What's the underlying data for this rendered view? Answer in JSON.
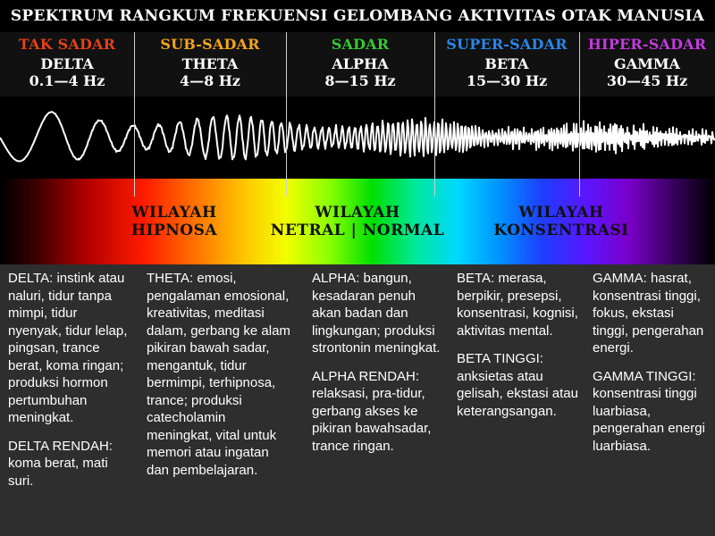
{
  "title": "SPEKTRUM RANGKUM FREKUENSI GELOMBANG AKTIVITAS OTAK MANUSIA",
  "bands": [
    {
      "state": "TAK SADAR",
      "name": "DELTA",
      "freq": "0.1—4 Hz",
      "color": "#e2411a"
    },
    {
      "state": "SUB-SADAR",
      "name": "THETA",
      "freq": "4—8 Hz",
      "color": "#f2a51e"
    },
    {
      "state": "SADAR",
      "name": "ALPHA",
      "freq": "8—15 Hz",
      "color": "#35c935"
    },
    {
      "state": "SUPER-SADAR",
      "name": "BETA",
      "freq": "15—30 Hz",
      "color": "#2a86e8"
    },
    {
      "state": "HIPER-SADAR",
      "name": "GAMMA",
      "freq": "30—45 Hz",
      "color": "#c43adf"
    }
  ],
  "regions": [
    {
      "line1": "WILAYAH",
      "line2": "HIPNOSA"
    },
    {
      "line1": "WILAYAH",
      "line2": "NETRAL | NORMAL"
    },
    {
      "line1": "WILAYAH",
      "line2": "KONSENTRASI"
    }
  ],
  "descriptions": [
    {
      "main": "DELTA: instink atau naluri, tidur tanpa mimpi, tidur nyenyak, tidur lelap, pingsan, trance berat, koma ringan; produksi hormon pertumbuhan meningkat.",
      "sub": "DELTA RENDAH: koma berat, mati suri."
    },
    {
      "main": "THETA: emosi, pengalaman emosional, kreativitas, meditasi dalam, gerbang ke alam pikiran bawah sadar, mengantuk, tidur bermimpi, terhipnosa, trance; produksi catecholamin meningkat, vital untuk memori atau ingatan dan pembelajaran.",
      "sub": ""
    },
    {
      "main": "ALPHA: bangun, kesadaran penuh akan badan dan lingkungan; produksi strontonin meningkat.",
      "sub": "ALPHA RENDAH: relaksasi, pra-tidur, gerbang akses ke pikiran bawahsadar, trance ringan."
    },
    {
      "main": "BETA: merasa, berpikir, presepsi, konsentrasi, kognisi, aktivitas mental.",
      "sub": "BETA TINGGI: anksietas atau gelisah, ekstasi atau keterangsangan."
    },
    {
      "main": "GAMMA: hasrat, konsentrasi tinggi, fokus, ekstasi tinggi, pengerahan energi.",
      "sub": "GAMMA TINGGI: konsentrasi tinggi luarbiasa, pengerahan energi luarbiasa."
    }
  ]
}
